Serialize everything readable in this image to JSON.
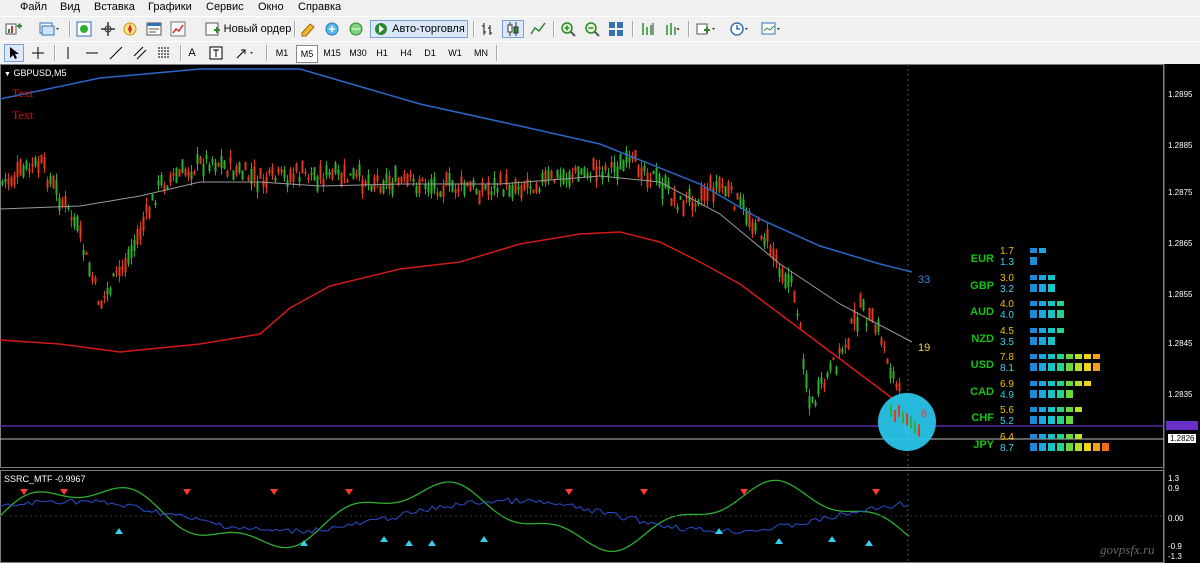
{
  "menu": [
    "Файл",
    "Вид",
    "Вставка",
    "Графики",
    "Сервис",
    "Окно",
    "Справка"
  ],
  "toolbar": {
    "new_order_label": "Новый ордер",
    "autotrade_label": "Авто-торговля",
    "timeframes": [
      "M1",
      "M5",
      "M15",
      "M30",
      "H1",
      "H4",
      "D1",
      "W1",
      "MN"
    ],
    "active_timeframe": "M5",
    "text_tool_label": "A"
  },
  "chart": {
    "symbol_label": "GBPUSD,M5",
    "text_objects": [
      "Text",
      "Text"
    ],
    "price_ticks": [
      "1.2895",
      "1.2885",
      "1.2875",
      "1.2865",
      "1.2855",
      "1.2845",
      "1.2835",
      "1.2826"
    ],
    "ma_labels": {
      "blue": "33",
      "yellow": "19",
      "red": "6"
    },
    "colors": {
      "up": "#2fae2f",
      "down": "#e03a1f",
      "blue_ma": "#2a68c8",
      "red_ma": "#d01a1a",
      "gray_ma": "#9a9a9a",
      "highlight": "#29c3e8"
    },
    "currency_strength": [
      {
        "currency": "EUR",
        "a": "1.7",
        "b": "1.3",
        "bars_a": 2,
        "bars_b": 1
      },
      {
        "currency": "GBP",
        "a": "3.0",
        "b": "3.2",
        "bars_a": 3,
        "bars_b": 3
      },
      {
        "currency": "AUD",
        "a": "4.0",
        "b": "4.0",
        "bars_a": 4,
        "bars_b": 4
      },
      {
        "currency": "NZD",
        "a": "4.5",
        "b": "3.5",
        "bars_a": 4,
        "bars_b": 3
      },
      {
        "currency": "USD",
        "a": "7.8",
        "b": "8.1",
        "bars_a": 8,
        "bars_b": 8
      },
      {
        "currency": "CAD",
        "a": "6.9",
        "b": "4.9",
        "bars_a": 7,
        "bars_b": 5
      },
      {
        "currency": "CHF",
        "a": "5.6",
        "b": "5.2",
        "bars_a": 6,
        "bars_b": 5
      },
      {
        "currency": "JPY",
        "a": "6.4",
        "b": "8.7",
        "bars_a": 6,
        "bars_b": 9
      }
    ]
  },
  "indicator": {
    "label": "SSRC_MTF -0.9967",
    "ticks": [
      "1.3",
      "0.9",
      "0.00",
      "-0.9",
      "-1.3"
    ]
  },
  "watermark": "govpsfx.ru"
}
